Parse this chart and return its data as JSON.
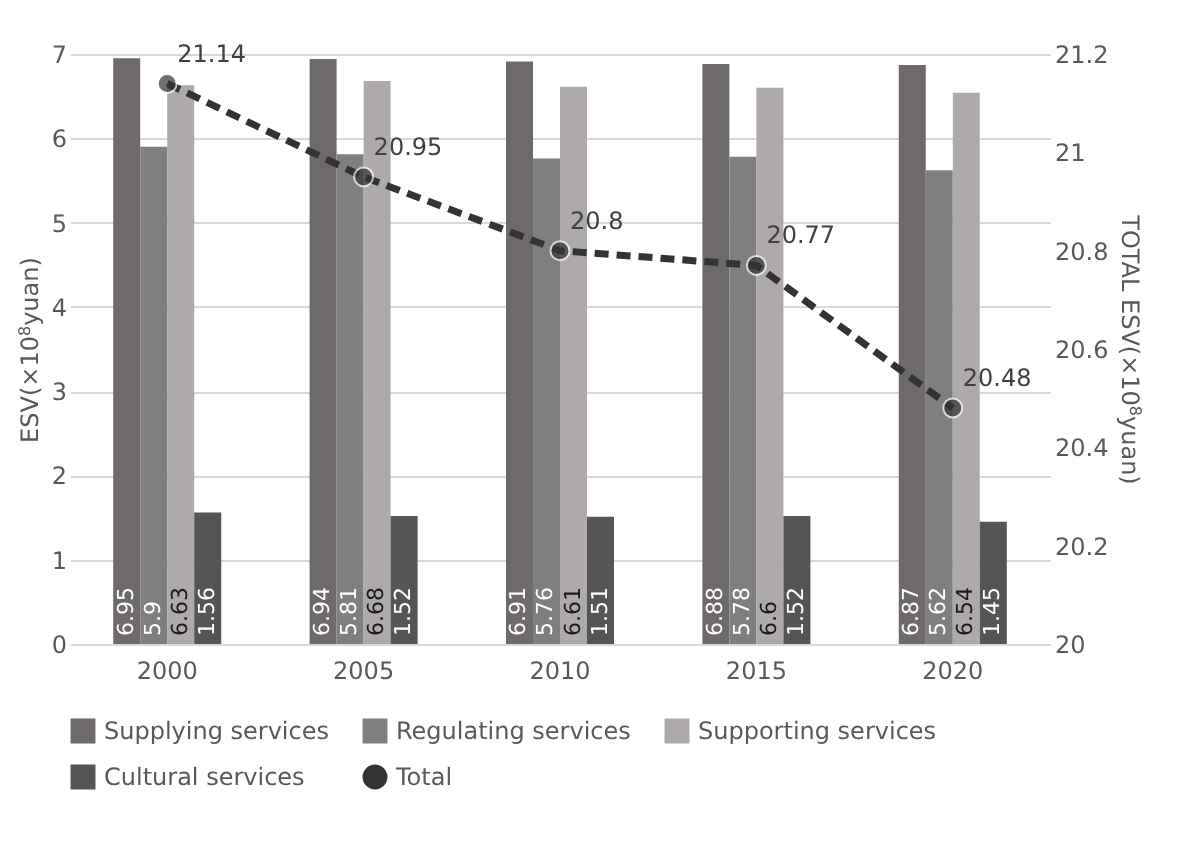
{
  "chart_data": {
    "type": "bar",
    "categories": [
      "2000",
      "2005",
      "2010",
      "2015",
      "2020"
    ],
    "series": [
      {
        "name": "Supplying services",
        "color": "#6e6a69",
        "values": [
          6.95,
          6.94,
          6.91,
          6.88,
          6.87
        ]
      },
      {
        "name": "Regulating services",
        "color": "#7f7f7f",
        "values": [
          5.9,
          5.81,
          5.76,
          5.78,
          5.62
        ]
      },
      {
        "name": "Supporting services",
        "color": "#aeaaaa",
        "values": [
          6.63,
          6.68,
          6.61,
          6.6,
          6.54
        ]
      },
      {
        "name": "Cultural services",
        "color": "#555555",
        "values": [
          1.56,
          1.52,
          1.51,
          1.52,
          1.45
        ]
      },
      {
        "name": "Total",
        "type": "line",
        "axis": "y2",
        "color": "#333333",
        "marker": "circle",
        "line_style": "dashed",
        "values": [
          21.14,
          20.95,
          20.8,
          20.77,
          20.48
        ]
      }
    ],
    "ylabel": "ESV(×10$^{8}$yuan)",
    "y2label": "TOTAL ESV(×10$^{8}$yuan)",
    "ylim": [
      0,
      7
    ],
    "yticks": [
      0,
      1,
      2,
      3,
      4,
      5,
      6,
      7
    ],
    "y2lim": [
      20,
      21.2
    ],
    "y2ticks": [
      20,
      20.2,
      20.4,
      20.6,
      20.8,
      21,
      21.2
    ],
    "grid": "y",
    "legend": "bottom",
    "data_labels": true
  }
}
